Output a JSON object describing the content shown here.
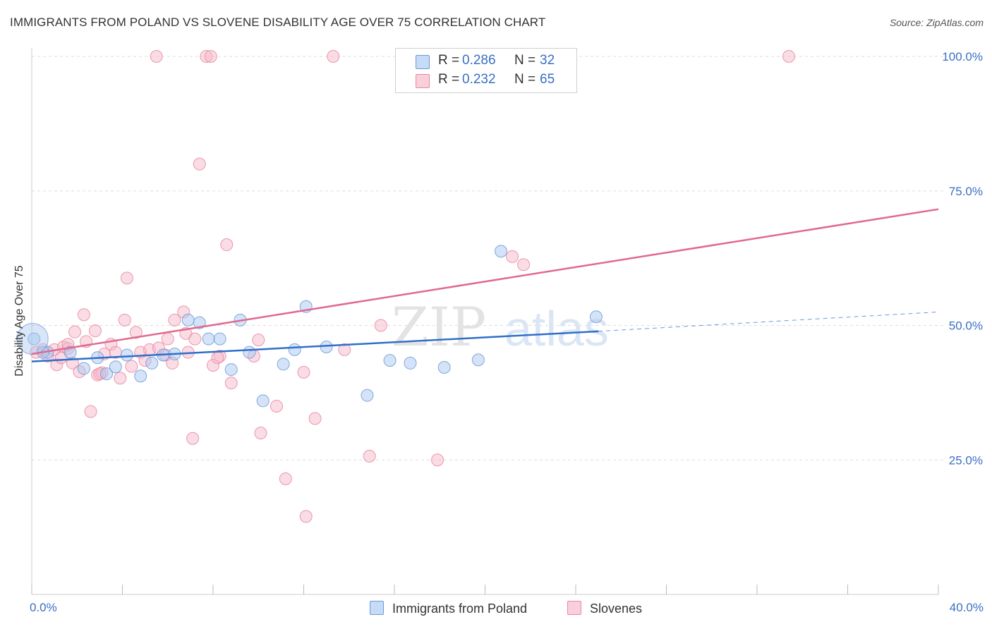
{
  "header": {
    "title": "IMMIGRANTS FROM POLAND VS SLOVENE DISABILITY AGE OVER 75 CORRELATION CHART",
    "source": "Source: ZipAtlas.com"
  },
  "legend": {
    "rows": [
      {
        "r_label": "R =",
        "r_value": "0.286",
        "n_label": "N =",
        "n_value": "32"
      },
      {
        "r_label": "R =",
        "r_value": "0.232",
        "n_label": "N =",
        "n_value": "65"
      }
    ]
  },
  "watermark": {
    "part1": "ZIP",
    "part2": "atlas"
  },
  "colors": {
    "poland_fill": "#a9c8f0",
    "poland_stroke": "#6c9ad8",
    "poland_line": "#2f6fca",
    "slovene_fill": "#f6b9cc",
    "slovene_stroke": "#e9879f",
    "slovene_line": "#e06990",
    "tick_text": "#3a6fc4",
    "grid": "#dddddd"
  },
  "chart_data": {
    "type": "scatter",
    "title": "IMMIGRANTS FROM POLAND VS SLOVENE DISABILITY AGE OVER 75 CORRELATION CHART",
    "xlabel": "",
    "ylabel": "Disability Age Over 75",
    "xlim": [
      0,
      40
    ],
    "ylim": [
      0,
      104
    ],
    "x_tick_labels": [
      "0.0%",
      "40.0%"
    ],
    "y_ticks": [
      25,
      50,
      75,
      100
    ],
    "y_tick_labels": [
      "25.0%",
      "50.0%",
      "75.0%",
      "100.0%"
    ],
    "grid": true,
    "legend_position": "top-center",
    "series": [
      {
        "name": "Immigrants from Poland",
        "color": "#a9c8f0",
        "r": 0.286,
        "n": 32,
        "trend": {
          "x0": 0.0,
          "y0": 43.3,
          "x1": 25.0,
          "y1": 48.9,
          "dashed_to_x": 40.0,
          "dashed_to_y": 52.5
        },
        "points": [
          [
            0.1,
            47.5
          ],
          [
            0.7,
            45.0
          ],
          [
            1.7,
            45.0
          ],
          [
            2.3,
            42.0
          ],
          [
            2.9,
            44.0
          ],
          [
            3.3,
            41.0
          ],
          [
            3.7,
            42.3
          ],
          [
            4.2,
            44.5
          ],
          [
            4.8,
            40.6
          ],
          [
            5.3,
            43.0
          ],
          [
            5.8,
            44.5
          ],
          [
            6.3,
            44.7
          ],
          [
            6.9,
            51.0
          ],
          [
            7.4,
            50.5
          ],
          [
            7.8,
            47.5
          ],
          [
            8.3,
            47.5
          ],
          [
            8.8,
            41.8
          ],
          [
            9.2,
            51.0
          ],
          [
            9.6,
            45.0
          ],
          [
            10.2,
            36.0
          ],
          [
            11.1,
            42.8
          ],
          [
            11.6,
            45.5
          ],
          [
            12.1,
            53.5
          ],
          [
            13.0,
            46.0
          ],
          [
            14.8,
            37.0
          ],
          [
            15.8,
            43.5
          ],
          [
            16.7,
            43.0
          ],
          [
            18.2,
            42.2
          ],
          [
            19.7,
            43.6
          ],
          [
            20.7,
            63.8
          ],
          [
            24.9,
            51.6
          ],
          [
            0.5,
            45.0
          ]
        ]
      },
      {
        "name": "Slovenes",
        "color": "#f6b9cc",
        "r": 0.232,
        "n": 65,
        "trend": {
          "x0": 0.0,
          "y0": 44.7,
          "x1": 40.0,
          "y1": 71.6
        },
        "points": [
          [
            0.2,
            45.0
          ],
          [
            0.5,
            45.5
          ],
          [
            0.7,
            44.3
          ],
          [
            1.0,
            45.5
          ],
          [
            1.1,
            42.7
          ],
          [
            1.4,
            46.0
          ],
          [
            1.6,
            45.7
          ],
          [
            1.6,
            46.5
          ],
          [
            1.8,
            43.0
          ],
          [
            1.9,
            48.8
          ],
          [
            2.1,
            41.4
          ],
          [
            2.3,
            52.0
          ],
          [
            2.4,
            47.0
          ],
          [
            2.6,
            34.0
          ],
          [
            2.8,
            49.0
          ],
          [
            2.9,
            40.8
          ],
          [
            3.1,
            41.2
          ],
          [
            3.2,
            44.7
          ],
          [
            3.5,
            46.5
          ],
          [
            3.7,
            45.0
          ],
          [
            3.9,
            40.2
          ],
          [
            4.1,
            51.0
          ],
          [
            4.2,
            58.8
          ],
          [
            4.4,
            42.4
          ],
          [
            4.6,
            48.7
          ],
          [
            4.8,
            45.0
          ],
          [
            5.0,
            43.5
          ],
          [
            5.2,
            45.5
          ],
          [
            5.5,
            100.0
          ],
          [
            5.6,
            45.8
          ],
          [
            5.9,
            44.5
          ],
          [
            6.0,
            47.5
          ],
          [
            6.2,
            43.0
          ],
          [
            6.3,
            51.0
          ],
          [
            6.7,
            52.5
          ],
          [
            6.8,
            48.5
          ],
          [
            7.1,
            29.0
          ],
          [
            7.2,
            47.5
          ],
          [
            7.4,
            80.0
          ],
          [
            7.7,
            100.0
          ],
          [
            7.9,
            100.0
          ],
          [
            8.0,
            42.6
          ],
          [
            8.3,
            44.3
          ],
          [
            8.6,
            65.0
          ],
          [
            8.8,
            39.3
          ],
          [
            9.8,
            44.3
          ],
          [
            10.0,
            47.3
          ],
          [
            10.1,
            30.0
          ],
          [
            10.8,
            35.0
          ],
          [
            11.2,
            21.5
          ],
          [
            12.0,
            41.3
          ],
          [
            12.1,
            14.5
          ],
          [
            12.5,
            32.7
          ],
          [
            13.3,
            100.0
          ],
          [
            13.8,
            45.5
          ],
          [
            14.9,
            25.7
          ],
          [
            15.4,
            50.0
          ],
          [
            17.9,
            25.0
          ],
          [
            21.2,
            62.8
          ],
          [
            21.7,
            61.3
          ],
          [
            33.4,
            100.0
          ],
          [
            6.9,
            45.0
          ],
          [
            3.0,
            41.0
          ],
          [
            1.3,
            44.0
          ],
          [
            8.2,
            44.0
          ]
        ]
      }
    ]
  }
}
